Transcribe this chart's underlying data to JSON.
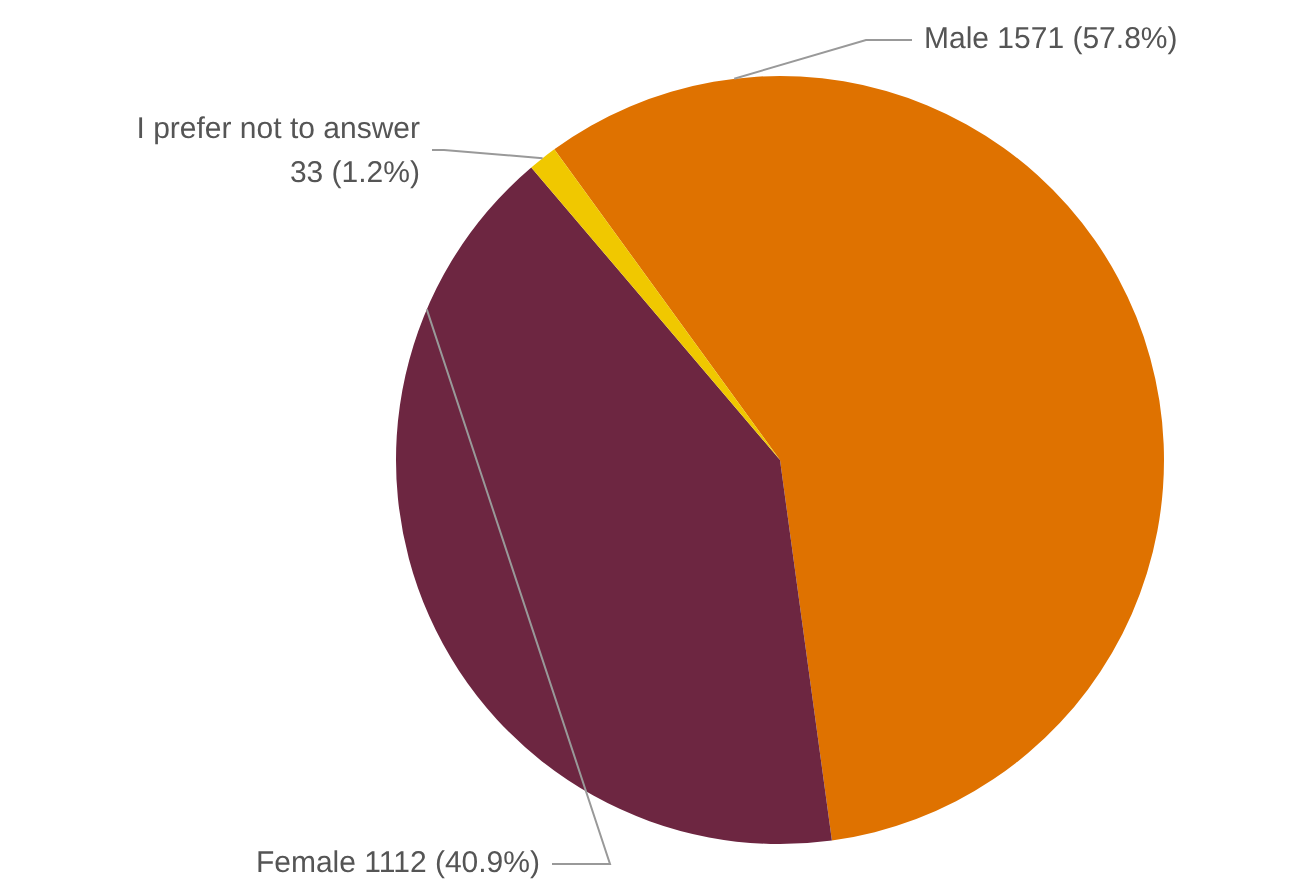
{
  "chart_data": {
    "type": "pie",
    "categories": [
      "Male",
      "Female",
      "I prefer not to answer"
    ],
    "values": [
      1571,
      1112,
      33
    ],
    "colors": [
      "#df7200",
      "#6d2641",
      "#f0c800"
    ],
    "value_labels": [
      "1571 (57.8%)",
      "1112 (40.9%)",
      "33 (1.2%)"
    ],
    "legend": false
  }
}
